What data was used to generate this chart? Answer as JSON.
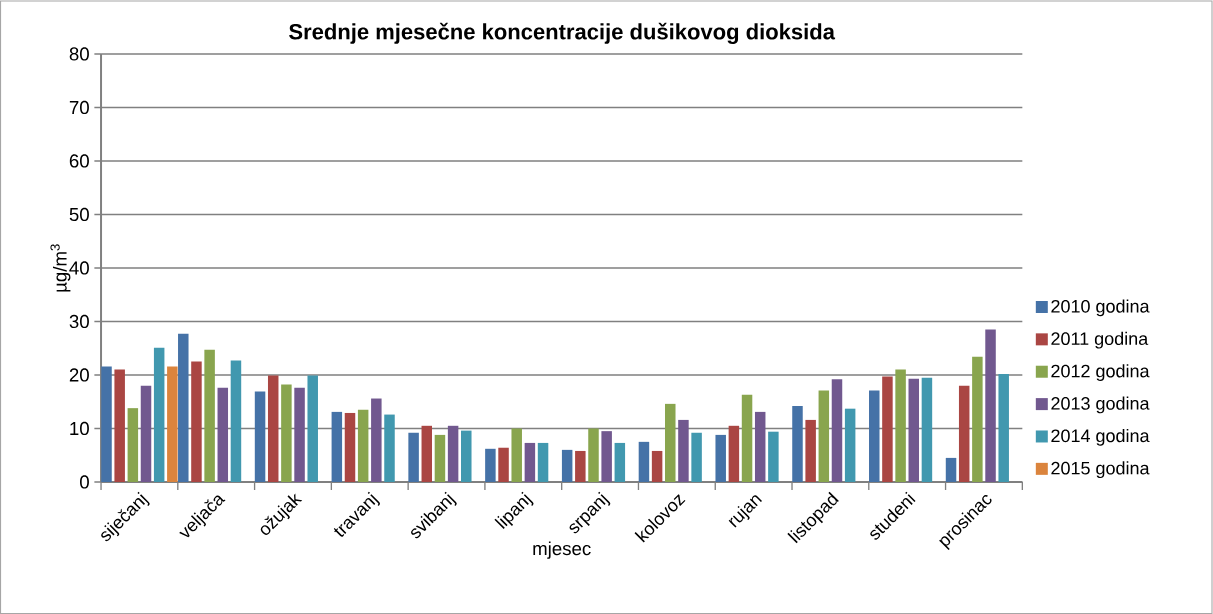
{
  "chart_data": {
    "type": "bar",
    "title": "Srednje mjesečne koncentracije dušikovog dioksida",
    "xlabel": "mjesec",
    "ylabel": "µg/m$^{3}$",
    "categories": [
      "siječanj",
      "veljača",
      "ožujak",
      "travanj",
      "svibanj",
      "lipanj",
      "srpanj",
      "kolovoz",
      "rujan",
      "listopad",
      "studeni",
      "prosinac"
    ],
    "series": [
      {
        "name": "2010 godina",
        "color": "#4572a7",
        "values": [
          21.6,
          27.7,
          16.9,
          13.1,
          9.2,
          6.2,
          6.0,
          7.5,
          8.8,
          14.2,
          17.1,
          4.5
        ]
      },
      {
        "name": "2011 godina",
        "color": "#aa4643",
        "values": [
          21.0,
          22.5,
          19.9,
          12.9,
          10.5,
          6.4,
          5.8,
          5.8,
          10.5,
          11.6,
          19.7,
          18.0
        ]
      },
      {
        "name": "2012 godina",
        "color": "#89a54e",
        "values": [
          13.8,
          24.7,
          18.2,
          13.5,
          8.8,
          10.0,
          10.0,
          14.6,
          16.3,
          17.1,
          21.0,
          23.4
        ]
      },
      {
        "name": "2013 godina",
        "color": "#71588f",
        "values": [
          18.0,
          17.6,
          17.6,
          15.6,
          10.5,
          7.3,
          9.5,
          11.6,
          13.1,
          19.2,
          19.3,
          28.5
        ]
      },
      {
        "name": "2014 godina",
        "color": "#4198af",
        "values": [
          25.1,
          22.7,
          19.9,
          12.6,
          9.6,
          7.3,
          7.3,
          9.2,
          9.4,
          13.7,
          19.5,
          20.2
        ]
      },
      {
        "name": "2015 godina",
        "color": "#db843d",
        "values": [
          21.6,
          null,
          null,
          null,
          null,
          null,
          null,
          null,
          null,
          null,
          null,
          null
        ]
      }
    ],
    "ylim": [
      0,
      80
    ],
    "yticks": [
      0,
      10,
      20,
      30,
      40,
      50,
      60,
      70,
      80
    ],
    "grid": "y",
    "legend": "right"
  }
}
